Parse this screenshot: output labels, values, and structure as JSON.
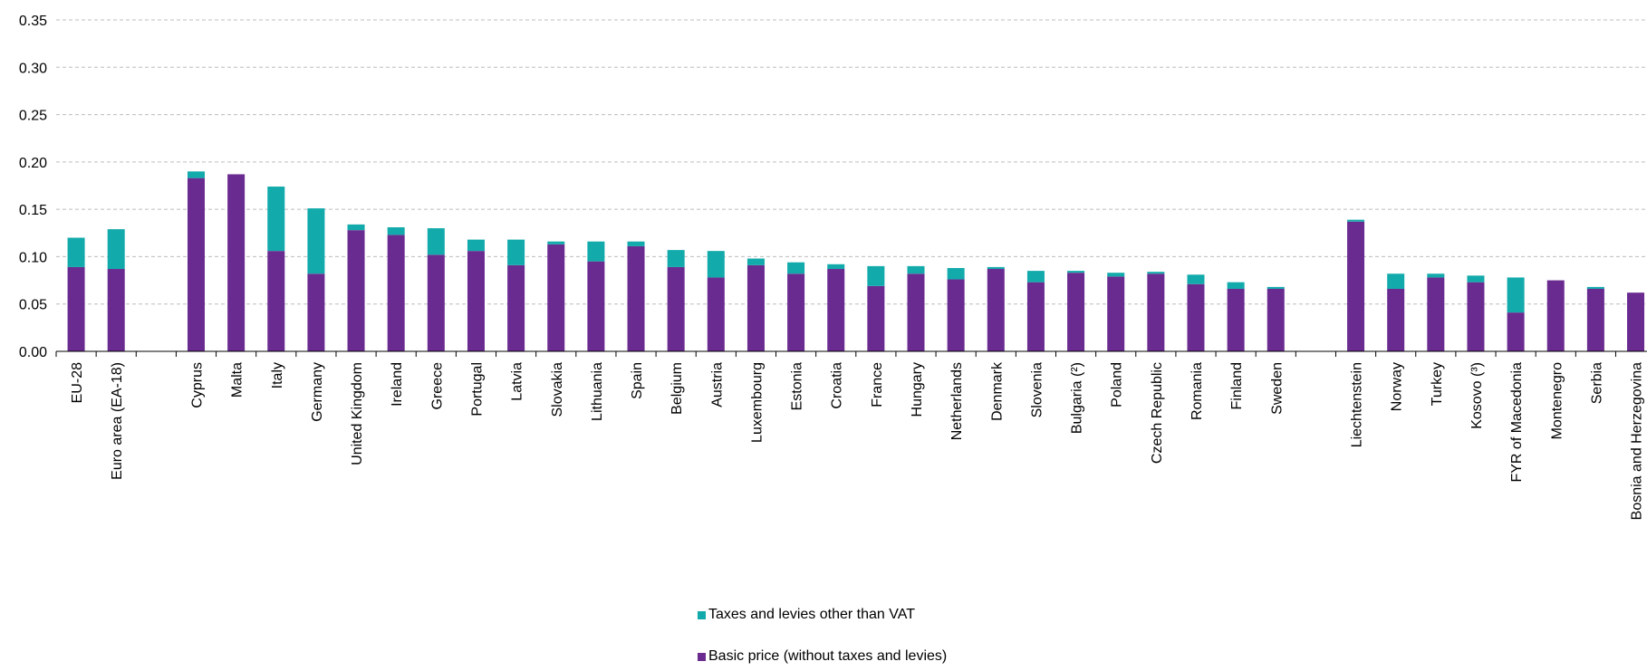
{
  "chart_data": {
    "type": "bar",
    "stacked": true,
    "title": "",
    "xlabel": "",
    "ylabel": "",
    "ylim": [
      0,
      0.35
    ],
    "yticks": [
      "0.00",
      "0.05",
      "0.10",
      "0.15",
      "0.20",
      "0.25",
      "0.30",
      "0.35"
    ],
    "grid": true,
    "legend_position": "bottom",
    "colors": {
      "basic": "#6a2b90",
      "taxes": "#13aaab",
      "grid": "#bdbdbd",
      "axis": "#000000"
    },
    "groups": [
      [
        "EU-28",
        "Euro area (EA-18)"
      ],
      [
        "Cyprus",
        "Malta",
        "Italy",
        "Germany",
        "United Kingdom",
        "Ireland",
        "Greece",
        "Portugal",
        "Latvia",
        "Slovakia",
        "Lithuania",
        "Spain",
        "Belgium",
        "Austria",
        "Luxembourg",
        "Estonia",
        "Croatia",
        "France",
        "Hungary",
        "Netherlands",
        "Denmark",
        "Slovenia",
        "Bulgaria (²)",
        "Poland",
        "Czech Republic",
        "Romania",
        "Finland",
        "Sweden"
      ],
      [
        "Liechtenstein",
        "Norway",
        "Turkey",
        "Kosovo (³)",
        "FYR of Macedonia",
        "Montenegro",
        "Serbia",
        "Bosnia and Herzegovina"
      ]
    ],
    "series": [
      {
        "name": "Basic price (without taxes and levies)",
        "key": "basic",
        "values": [
          [
            0.089,
            0.087
          ],
          [
            0.183,
            0.187,
            0.106,
            0.082,
            0.128,
            0.123,
            0.102,
            0.106,
            0.091,
            0.113,
            0.095,
            0.111,
            0.089,
            0.078,
            0.091,
            0.082,
            0.087,
            0.069,
            0.082,
            0.076,
            0.087,
            0.073,
            0.083,
            0.079,
            0.082,
            0.071,
            0.066,
            0.066
          ],
          [
            0.137,
            0.066,
            0.078,
            0.073,
            0.041,
            0.075,
            0.066,
            0.062
          ]
        ]
      },
      {
        "name": "Taxes and levies other than VAT",
        "key": "taxes",
        "values": [
          [
            0.031,
            0.042
          ],
          [
            0.007,
            0.0,
            0.068,
            0.069,
            0.006,
            0.008,
            0.028,
            0.012,
            0.027,
            0.003,
            0.021,
            0.005,
            0.018,
            0.028,
            0.007,
            0.012,
            0.005,
            0.021,
            0.008,
            0.012,
            0.002,
            0.012,
            0.002,
            0.004,
            0.002,
            0.01,
            0.007,
            0.002
          ],
          [
            0.002,
            0.016,
            0.004,
            0.007,
            0.037,
            0.0,
            0.002,
            0.0
          ]
        ]
      }
    ]
  },
  "legend": {
    "taxes_label": "Taxes and levies other than VAT",
    "basic_label": "Basic price (without taxes and levies)"
  }
}
